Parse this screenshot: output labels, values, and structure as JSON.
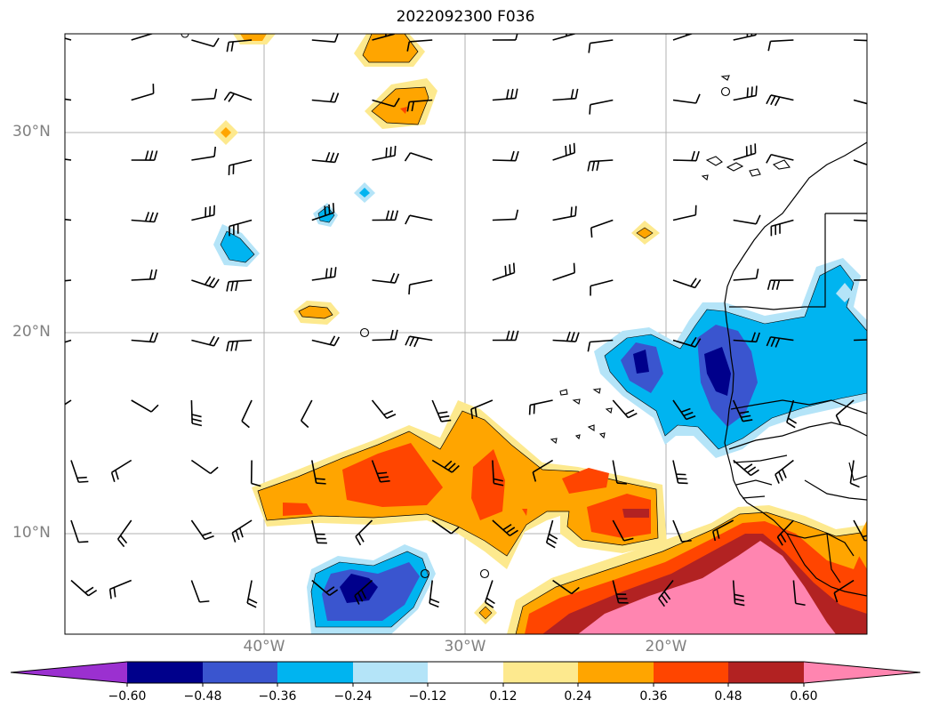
{
  "title": "2022092300 F036",
  "map": {
    "lat_labels": [
      "30°N",
      "20°N",
      "10°N"
    ],
    "lon_labels": [
      "40°W",
      "30°W",
      "20°W"
    ]
  },
  "colorbar": {
    "tick_labels": [
      "−0.60",
      "−0.48",
      "−0.36",
      "−0.24",
      "−0.12",
      "0.12",
      "0.24",
      "0.36",
      "0.48",
      "0.60"
    ],
    "colors": [
      "#9b30d0",
      "#00008b",
      "#3a55cf",
      "#00b4f0",
      "#b4e4f8",
      "#ffffff",
      "#fde98e",
      "#ffa500",
      "#ff4500",
      "#b22222",
      "#ff85b0"
    ]
  }
}
